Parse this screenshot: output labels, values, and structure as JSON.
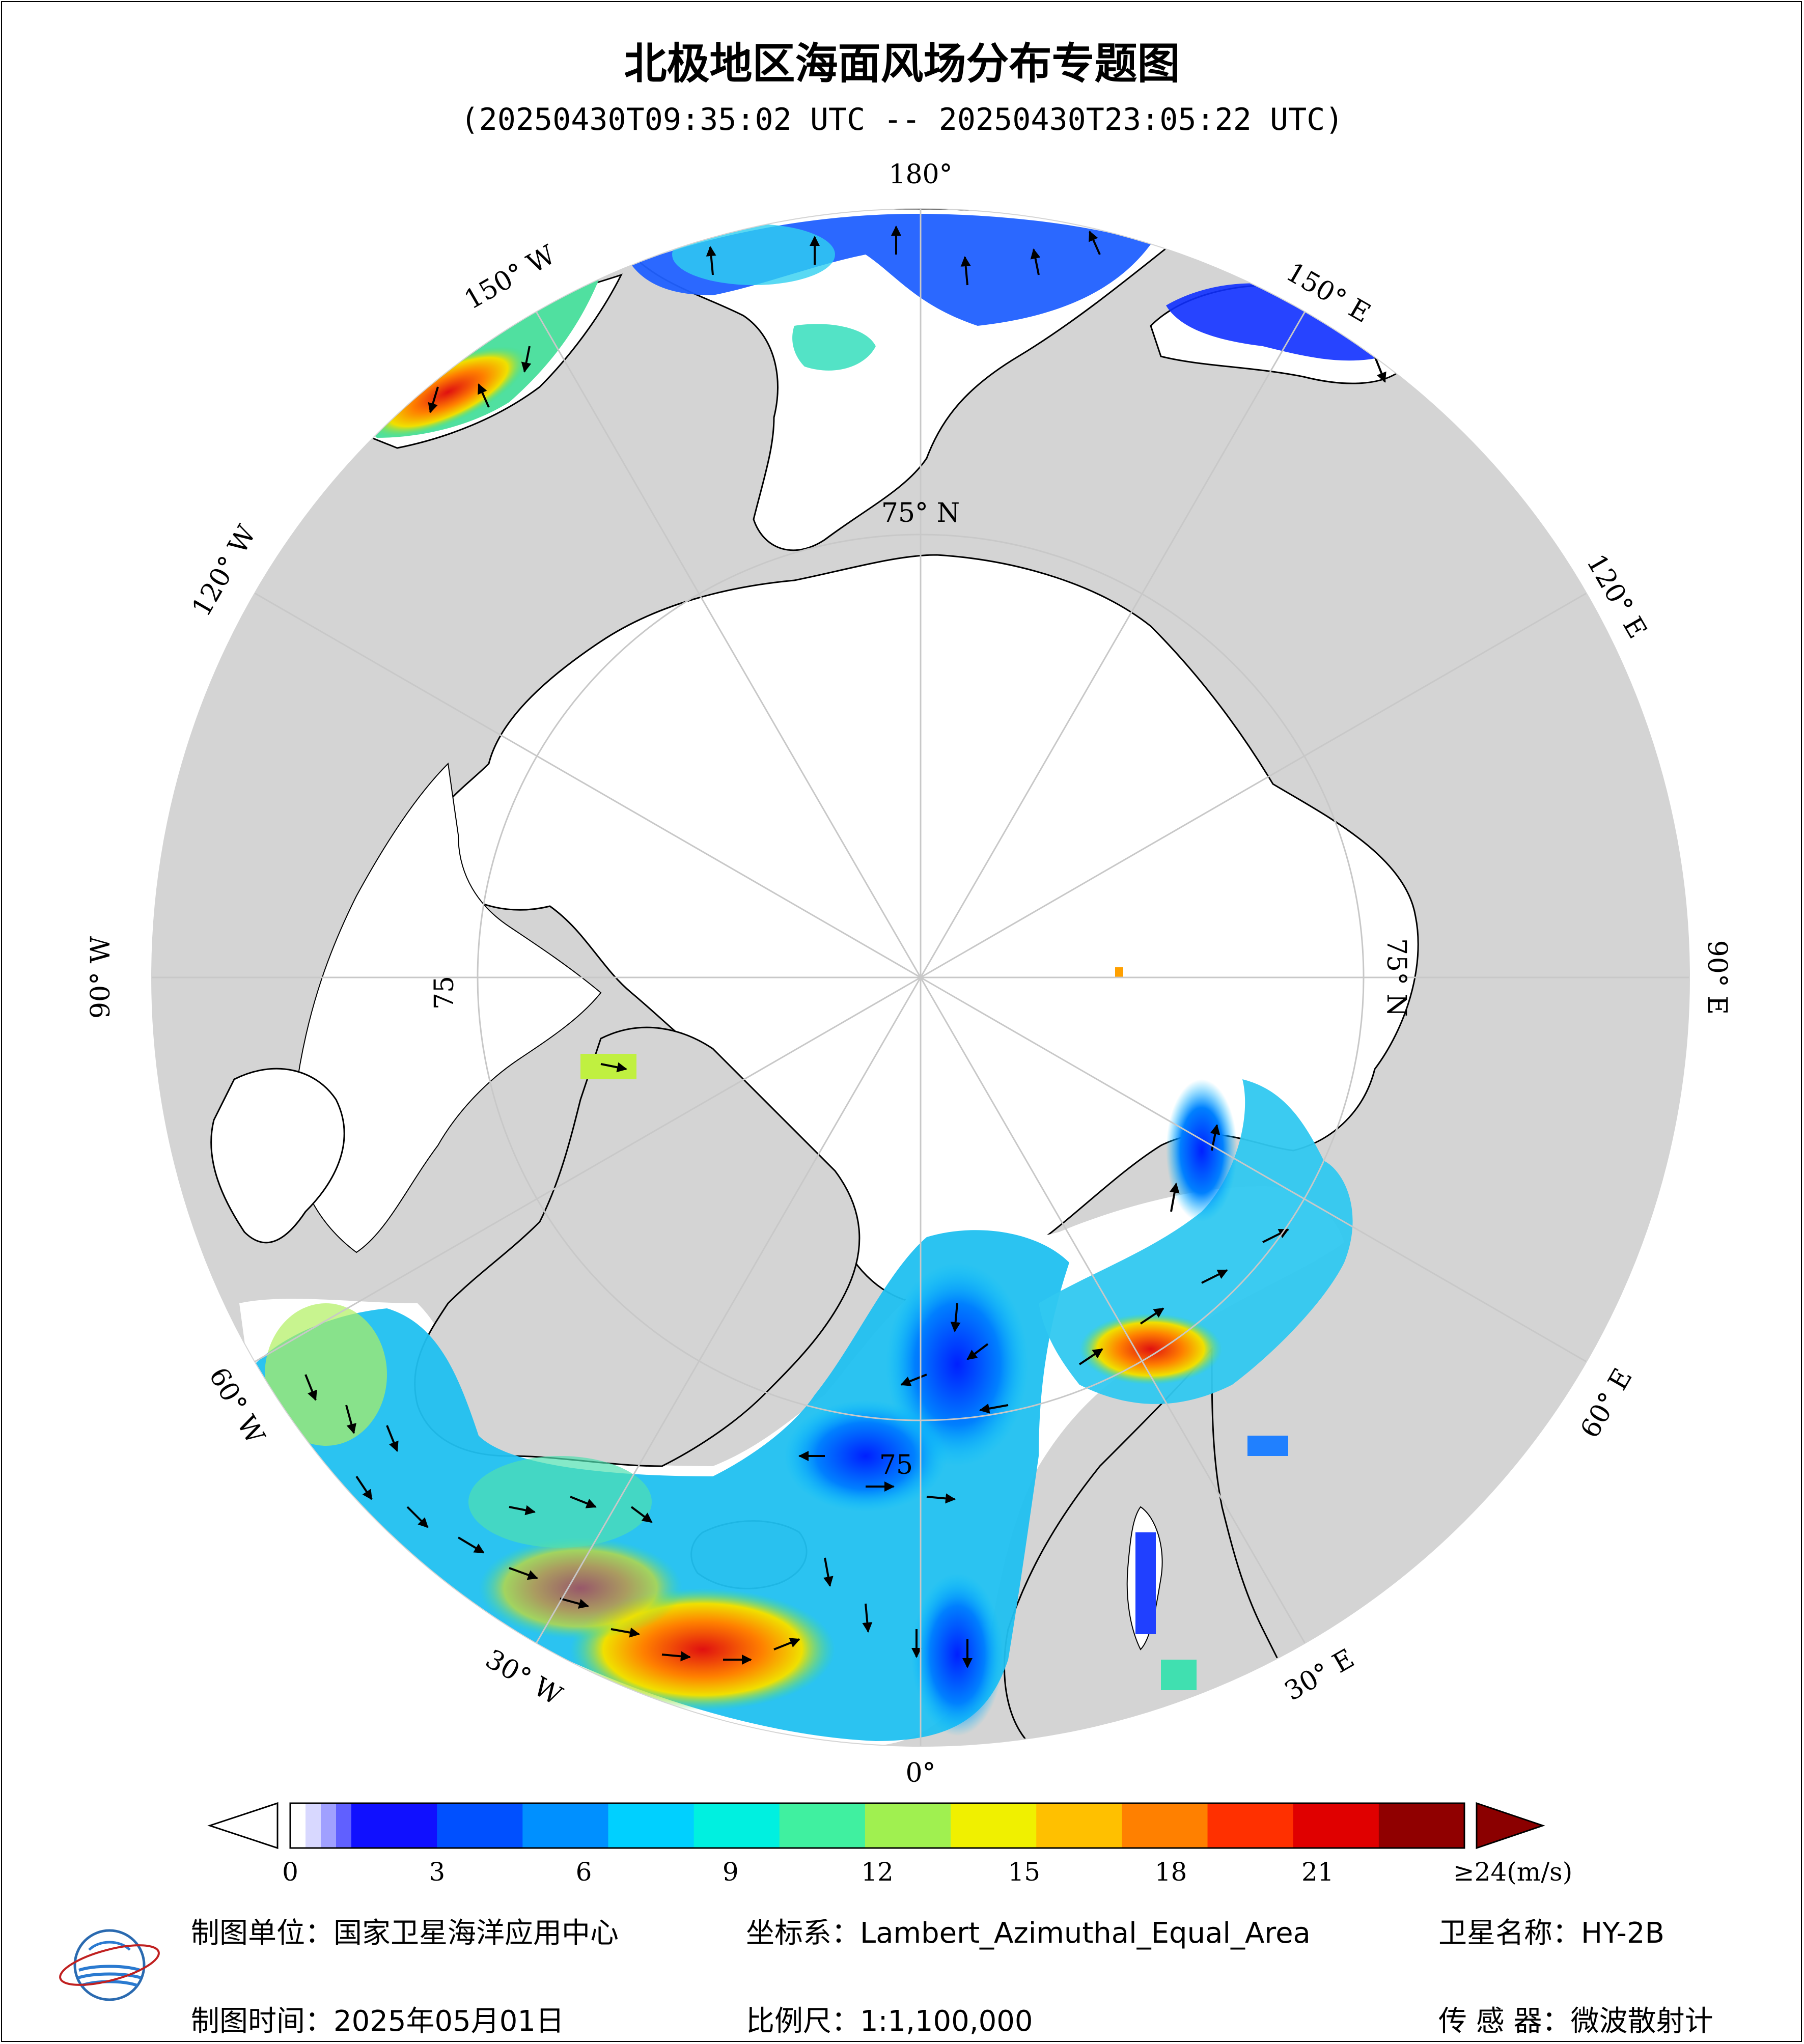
{
  "title": "北极地区海面风场分布专题图",
  "subtitle": "(20250430T09:35:02 UTC -- 20250430T23:05:22 UTC)",
  "meridian_labels": {
    "m180": "180°",
    "m150w": "150° W",
    "m120w": "120° W",
    "m90w": "90° W",
    "m60w": "60° W",
    "m30w": "30° W",
    "m0": "0°",
    "m30e": "30° E",
    "m60e": "60° E",
    "m90e": "90° E",
    "m120e": "120° E",
    "m150e": "150° E"
  },
  "parallel_labels": {
    "top": "75° N",
    "right": "75° N",
    "left": "75",
    "bottom": "75"
  },
  "colorbar": {
    "ticks": [
      "0",
      "3",
      "6",
      "9",
      "12",
      "15",
      "18",
      "21",
      "≥24(m/s)"
    ],
    "tick_values": [
      0,
      3,
      6,
      9,
      12,
      15,
      18,
      21,
      24
    ],
    "min": 0,
    "max": 24,
    "colors": [
      "#ffffff",
      "#d8d8ff",
      "#a0a0ff",
      "#6060ff",
      "#1010ff",
      "#0050ff",
      "#0090ff",
      "#00d0ff",
      "#00f0e0",
      "#40f0a0",
      "#a0f050",
      "#f0f000",
      "#ffc000",
      "#ff8000",
      "#ff3000",
      "#e00000",
      "#900000"
    ],
    "over_color": "#8b0000"
  },
  "info": {
    "unit": "制图单位：国家卫星海洋应用中心",
    "date": "制图时间：2025年05月01日",
    "crs": "坐标系：Lambert_Azimuthal_Equal_Area",
    "scale": "比例尺：1:1,100,000",
    "satellite": "卫星名称：HY-2B",
    "sensor": "传 感 器：微波散射计"
  },
  "colors": {
    "land": "#d4d4d4",
    "ocean_ice": "#ffffff",
    "graticule": "#c8c8c8",
    "coast": "#000000"
  }
}
